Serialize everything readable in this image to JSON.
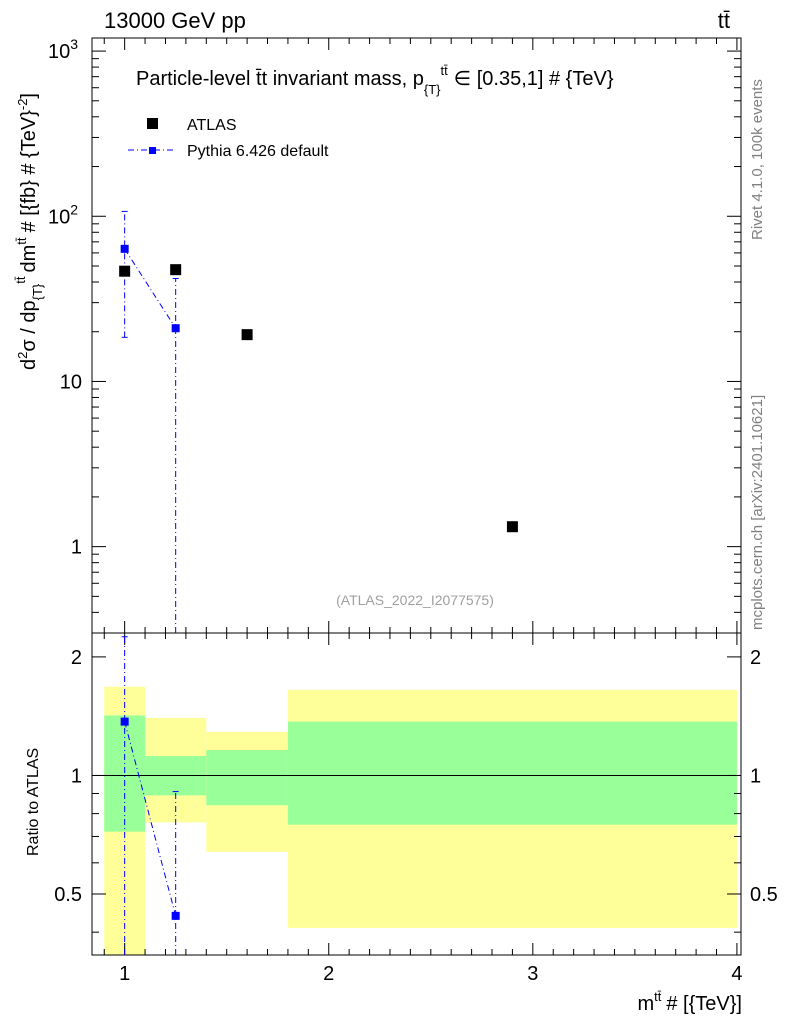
{
  "chart_data": {
    "type": "scatter",
    "header_left": "13000 GeV pp",
    "header_right": "tt̄",
    "title": "Particle-level t̄t invariant mass, p_{T}^{tt̄} ∈ [0.35,1] # {TeV}",
    "title_main": "Particle-level t̄t invariant mass, p",
    "title_sub": "{T}",
    "title_sup": "tt̄",
    "title_tail": "∈ [0.35,1] # {TeV}",
    "analysis_id": "(ATLAS_2022_I2077575)",
    "side_rivet": "Rivet 4.1.0,  100k events",
    "side_mcplots": "mcplots.cern.ch [arXiv:2401.10621]",
    "ylabel_top": "d²σ / dp_{T}^{tt̄} dm^{tt̄} # [{fb} # {TeV}^-2]",
    "ylabel_top_parts": {
      "d": "d",
      "two": "2",
      "sigma_dp": "σ / dp",
      "sub_T": "{T}",
      "sup_tt": "tt̄",
      "dm": "dm",
      "sup_tt2": "tt̄",
      "units": "# [{fb} # {TeV}",
      "exp": "-2",
      "close": "]"
    },
    "ylabel_bottom": "Ratio to ATLAS",
    "xlabel": "m^{tt̄} # [{TeV}]",
    "xlabel_parts": {
      "m": "m",
      "sup": "tt̄",
      "units": "# [{TeV}]"
    },
    "xlim": [
      0.84,
      4.02
    ],
    "ylim_top": [
      0.3,
      1200
    ],
    "ylim_bottom": [
      0.35,
      2.3
    ],
    "x_ticks": [
      1,
      2,
      3,
      4
    ],
    "x_tick_labels": [
      "1",
      "2",
      "3",
      "4"
    ],
    "y_ticks_top": [
      1,
      10,
      100,
      1000
    ],
    "y_tick_labels_top": [
      "1",
      "10",
      "10",
      "10"
    ],
    "y_tick_exps_top": [
      "",
      "",
      "2",
      "3"
    ],
    "y_ticks_bottom": [
      0.5,
      1,
      2
    ],
    "y_tick_labels_bottom": [
      "0.5",
      "1",
      "2"
    ],
    "legend": [
      {
        "name": "ATLAS",
        "color": "#000000"
      },
      {
        "name": "Pythia 6.426 default",
        "color": "#0000ff"
      }
    ],
    "bins": [
      {
        "x_lo": 0.9,
        "x_hi": 1.1,
        "y_lo_yellow": 0.2,
        "y_hi_yellow": 1.68,
        "y_lo_green": 0.72,
        "y_hi_green": 1.42
      },
      {
        "x_lo": 1.1,
        "x_hi": 1.4,
        "y_lo_yellow": 0.76,
        "y_hi_yellow": 1.4,
        "y_lo_green": 0.89,
        "y_hi_green": 1.12
      },
      {
        "x_lo": 1.4,
        "x_hi": 1.8,
        "y_lo_yellow": 0.64,
        "y_hi_yellow": 1.29,
        "y_lo_green": 0.84,
        "y_hi_green": 1.16
      },
      {
        "x_lo": 1.8,
        "x_hi": 4.0,
        "y_lo_yellow": 0.41,
        "y_hi_yellow": 1.65,
        "y_lo_green": 0.75,
        "y_hi_green": 1.37
      }
    ],
    "series": [
      {
        "name": "ATLAS",
        "color": "#000000",
        "x": [
          1.0,
          1.25,
          1.6,
          2.9
        ],
        "y": [
          46.5,
          47.5,
          19.2,
          1.32
        ]
      },
      {
        "name": "Pythia 6.426 default",
        "color": "#0000ff",
        "x": [
          1.0,
          1.25
        ],
        "y": [
          63.5,
          21.0
        ],
        "y_err_lo": [
          18.5,
          0.0
        ],
        "y_err_hi": [
          107,
          42
        ],
        "ratio": [
          1.37,
          0.44
        ],
        "ratio_err_lo": [
          0.0,
          0.0
        ],
        "ratio_err_hi": [
          2.25,
          0.91
        ]
      }
    ]
  }
}
